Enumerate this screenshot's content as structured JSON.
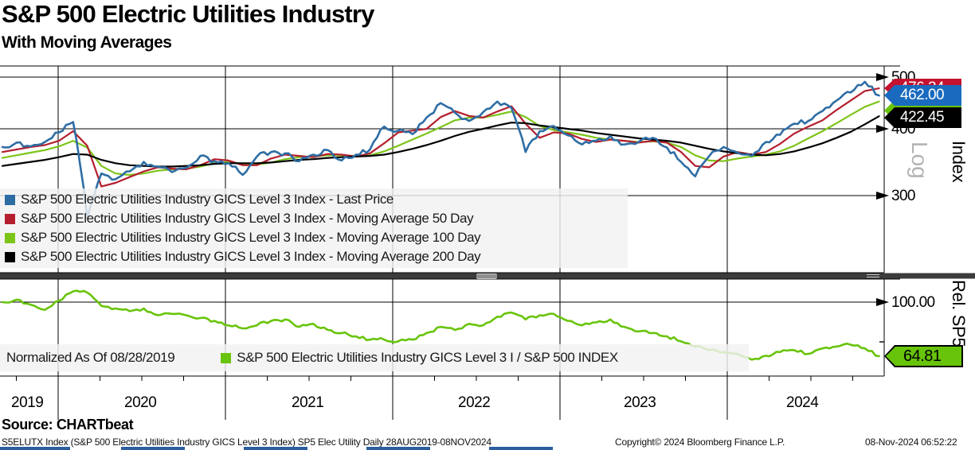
{
  "header": {
    "title": "S&P 500 Electric Utilities Industry",
    "subtitle": "With Moving Averages"
  },
  "main_panel": {
    "axis_label": "Index",
    "scale_label": "Log",
    "y_ticks": [
      "500",
      "400",
      "300"
    ],
    "badges": [
      {
        "value": "476.34",
        "bg": "#c41230",
        "fg": "#ffffff",
        "series": "Moving Average 50 Day"
      },
      {
        "value": "462.00",
        "bg": "#1a6bbf",
        "fg": "#ffffff",
        "series": "Last Price"
      },
      {
        "value": "",
        "bg": "#68c40a",
        "fg": "#000000",
        "series": "Moving Average 100 Day"
      },
      {
        "value": "422.45",
        "bg": "#000000",
        "fg": "#ffffff",
        "series": "Moving Average 200 Day"
      }
    ],
    "legend": [
      {
        "color": "#2e6da4",
        "label": "S&P 500 Electric Utilities Industry GICS Level 3 Index - Last Price"
      },
      {
        "color": "#b41f2e",
        "label": "S&P 500 Electric Utilities Industry GICS Level 3 Index - Moving Average 50 Day"
      },
      {
        "color": "#7dc419",
        "label": "S&P 500 Electric Utilities Industry GICS Level 3 Index - Moving Average 100 Day"
      },
      {
        "color": "#000000",
        "label": "S&P 500 Electric Utilities Industry GICS Level 3 Index - Moving Average 200 Day"
      }
    ]
  },
  "lower_panel": {
    "axis_label": "Rel. SP5",
    "y_ticks": [
      "100.00"
    ],
    "badge": {
      "value": "64.81",
      "bg": "#68c40a",
      "fg": "#000000"
    },
    "normalized_label": "Normalized As Of 08/28/2019",
    "legend": [
      {
        "color": "#68c40a",
        "label": "S&P 500 Electric Utilities Industry GICS Level 3 I / S&P 500 INDEX"
      }
    ]
  },
  "x_axis": {
    "years": [
      "2019",
      "2020",
      "2021",
      "2022",
      "2023",
      "2024"
    ]
  },
  "footer": {
    "source": "Source: CHARTbeat",
    "description": "S5ELUTX Index (S&P 500 Electric Utilities Industry GICS Level 3 Index) SP5 Elec Utility  Daily 28AUG2019-08NOV2024",
    "copyright": "Copyright© 2024 Bloomberg Finance L.P.",
    "timestamp": "08-Nov-2024 06:52:22"
  },
  "chart_data": [
    {
      "type": "line",
      "title": "S&P 500 Electric Utilities Industry With Moving Averages",
      "ylabel": "Index",
      "scale": "log",
      "ylim": [
        265,
        510
      ],
      "yticks": [
        300,
        400,
        500
      ],
      "grid": true,
      "legend_position": "inside lower-left",
      "x_start": "2019-09",
      "x_end": "2024-11",
      "x_frequency": "monthly",
      "series": [
        {
          "name": "Last Price",
          "color": "#2e6da4",
          "last_label": 462.0,
          "values": [
            370,
            377,
            371,
            378,
            394,
            412,
            272,
            330,
            322,
            333,
            347,
            340,
            332,
            338,
            356,
            348,
            345,
            328,
            355,
            362,
            360,
            348,
            358,
            365,
            349,
            358,
            366,
            404,
            397,
            391,
            420,
            447,
            429,
            414,
            430,
            450,
            438,
            362,
            396,
            405,
            389,
            374,
            380,
            388,
            374,
            378,
            385,
            369,
            347,
            326,
            356,
            370,
            361,
            356,
            378,
            390,
            409,
            414,
            432,
            452,
            468,
            490,
            462
          ]
        },
        {
          "name": "Moving Average 50 Day",
          "color": "#b41f2e",
          "last_label": 476.34,
          "values": [
            362,
            366,
            370,
            373,
            380,
            396,
            372,
            312,
            317,
            325,
            333,
            339,
            337,
            336,
            342,
            351,
            349,
            342,
            342,
            352,
            358,
            356,
            354,
            359,
            358,
            355,
            360,
            376,
            394,
            397,
            400,
            421,
            432,
            423,
            420,
            431,
            441,
            409,
            385,
            394,
            392,
            383,
            378,
            382,
            380,
            377,
            380,
            377,
            362,
            341,
            339,
            355,
            362,
            358,
            362,
            375,
            392,
            404,
            415,
            434,
            452,
            471,
            476.34
          ]
        },
        {
          "name": "Moving Average 100 Day",
          "color": "#7dc419",
          "values": [
            353,
            357,
            361,
            365,
            371,
            380,
            369,
            341,
            330,
            328,
            330,
            334,
            336,
            337,
            340,
            345,
            347,
            344,
            343,
            346,
            351,
            354,
            355,
            357,
            357,
            356,
            357,
            363,
            372,
            382,
            392,
            403,
            415,
            420,
            420,
            425,
            431,
            421,
            405,
            398,
            394,
            390,
            385,
            382,
            380,
            378,
            379,
            377,
            370,
            357,
            349,
            348,
            352,
            355,
            358,
            363,
            372,
            384,
            396,
            410,
            425,
            440,
            450
          ]
        },
        {
          "name": "Moving Average 200 Day",
          "color": "#000000",
          "last_label": 422.45,
          "values": [
            341,
            344,
            347,
            350,
            354,
            359,
            358,
            350,
            345,
            342,
            341,
            340,
            340,
            341,
            342,
            344,
            345,
            345,
            345,
            346,
            348,
            350,
            351,
            353,
            354,
            355,
            356,
            358,
            362,
            367,
            373,
            380,
            388,
            395,
            400,
            406,
            411,
            410,
            406,
            403,
            400,
            397,
            393,
            390,
            387,
            384,
            382,
            380,
            377,
            372,
            367,
            363,
            360,
            358,
            357,
            359,
            363,
            369,
            376,
            385,
            395,
            408,
            422.45
          ]
        }
      ]
    },
    {
      "type": "line",
      "title": "Relative performance vs S&P 500, normalized as of 08/28/2019",
      "ylabel": "Rel. SP5",
      "scale": "log",
      "ylim": [
        55,
        115
      ],
      "yticks": [
        100
      ],
      "grid": true,
      "x_start": "2019-09",
      "x_end": "2024-11",
      "x_frequency": "monthly",
      "series": [
        {
          "name": "S&P 500 Electric Utilities Industry GICS Level 3 I / S&P 500 INDEX",
          "color": "#68c40a",
          "last_label": 64.81,
          "values": [
            100,
            102,
            98,
            94,
            101,
            109,
            108,
            97,
            95,
            93,
            95,
            90,
            91,
            90,
            88,
            86,
            83,
            81,
            83,
            86,
            87,
            82,
            84,
            80,
            78,
            76,
            74,
            74,
            73,
            74,
            78,
            82,
            80,
            84,
            83,
            89,
            92,
            87,
            90,
            91,
            86,
            83,
            85,
            87,
            82,
            79,
            78,
            76,
            73,
            70,
            68,
            67,
            66,
            63,
            65,
            67,
            68,
            66,
            69,
            70,
            71,
            69,
            64.81
          ]
        }
      ]
    }
  ]
}
